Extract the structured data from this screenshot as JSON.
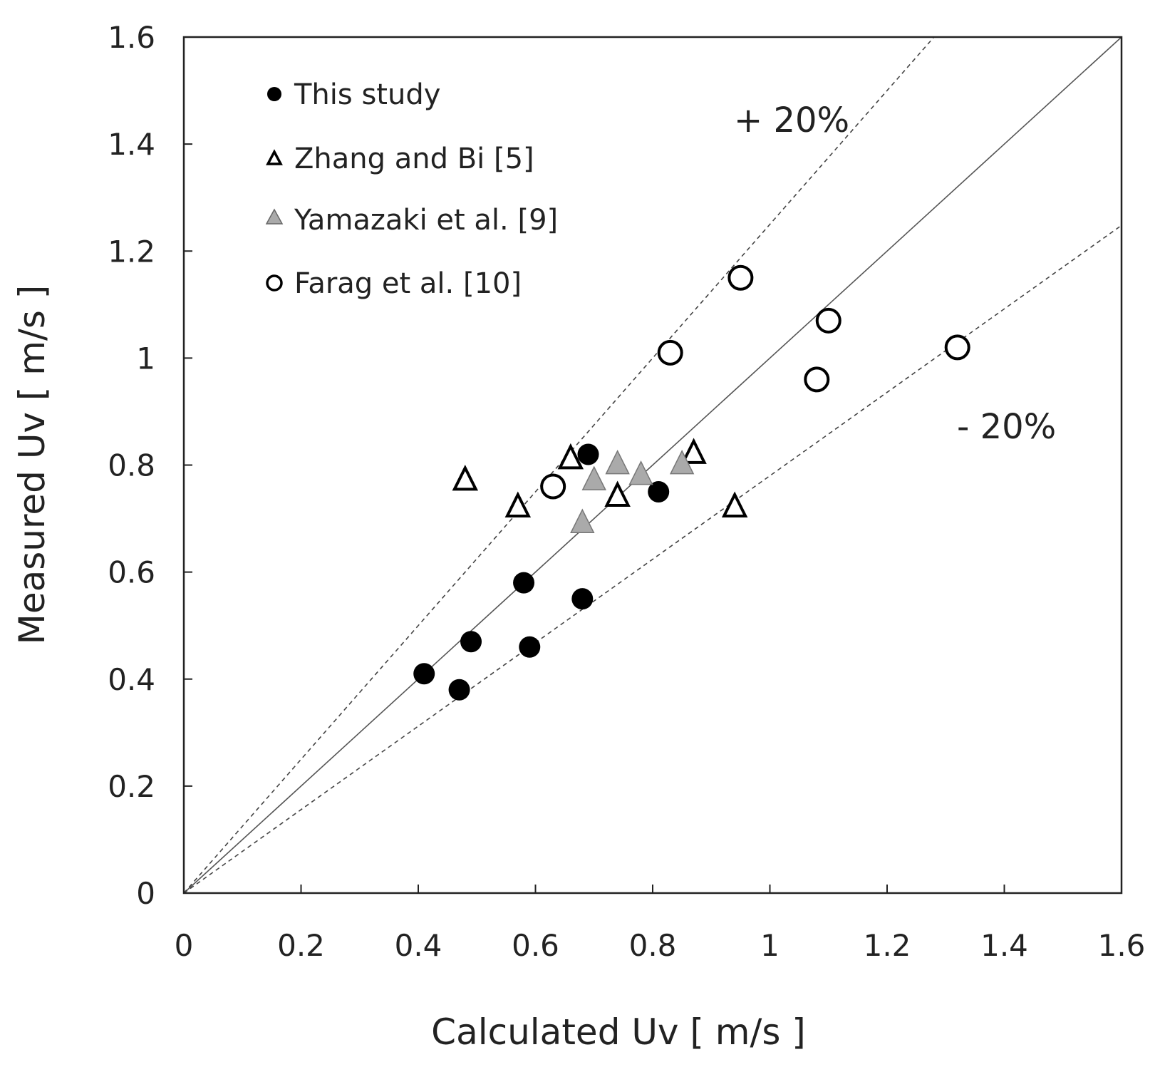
{
  "chart_data": {
    "type": "scatter",
    "title": "",
    "xlabel": "Calculated Uv  [ m/s ]",
    "ylabel": "Measured Uv  [ m/s ]",
    "xlim": [
      0,
      1.6
    ],
    "ylim": [
      0,
      1.6
    ],
    "x_ticks": [
      0,
      0.2,
      0.4,
      0.6,
      0.8,
      1,
      1.2,
      1.4,
      1.6
    ],
    "y_ticks": [
      0,
      0.2,
      0.4,
      0.6,
      0.8,
      1,
      1.2,
      1.4,
      1.6
    ],
    "x_tick_labels": [
      "0",
      "0.2",
      "0.4",
      "0.6",
      "0.8",
      "1",
      "1.2",
      "1.4",
      "1.6"
    ],
    "y_tick_labels": [
      "0",
      "0.2",
      "0.4",
      "0.6",
      "0.8",
      "1",
      "1.2",
      "1.4",
      "1.6"
    ],
    "grid": false,
    "legend_position": "top-left",
    "reference_lines": [
      {
        "name": "parity",
        "slope": 1.0,
        "style": "solid"
      },
      {
        "name": "plus-20",
        "slope": 1.25,
        "style": "dashed",
        "label": "+ 20%"
      },
      {
        "name": "minus-20",
        "slope": 0.78,
        "style": "dashed",
        "label": "- 20%"
      }
    ],
    "series": [
      {
        "name": "This study",
        "marker": "filled-circle",
        "color": "#000000",
        "points": [
          {
            "x": 0.41,
            "y": 0.41
          },
          {
            "x": 0.47,
            "y": 0.38
          },
          {
            "x": 0.49,
            "y": 0.47
          },
          {
            "x": 0.58,
            "y": 0.58
          },
          {
            "x": 0.59,
            "y": 0.46
          },
          {
            "x": 0.68,
            "y": 0.55
          },
          {
            "x": 0.69,
            "y": 0.82
          },
          {
            "x": 0.81,
            "y": 0.75
          }
        ]
      },
      {
        "name": "Zhang and Bi [5]",
        "marker": "open-triangle",
        "color": "#000000",
        "points": [
          {
            "x": 0.48,
            "y": 0.77
          },
          {
            "x": 0.57,
            "y": 0.72
          },
          {
            "x": 0.66,
            "y": 0.81
          },
          {
            "x": 0.74,
            "y": 0.74
          },
          {
            "x": 0.87,
            "y": 0.82
          },
          {
            "x": 0.94,
            "y": 0.72
          }
        ]
      },
      {
        "name": "Yamazaki et al. [9]",
        "marker": "gray-triangle",
        "color": "#aaaaaa",
        "points": [
          {
            "x": 0.68,
            "y": 0.69
          },
          {
            "x": 0.7,
            "y": 0.77
          },
          {
            "x": 0.74,
            "y": 0.8
          },
          {
            "x": 0.78,
            "y": 0.78
          },
          {
            "x": 0.85,
            "y": 0.8
          }
        ]
      },
      {
        "name": "Farag et al. [10]",
        "marker": "open-circle",
        "color": "#000000",
        "points": [
          {
            "x": 0.63,
            "y": 0.76
          },
          {
            "x": 0.83,
            "y": 1.01
          },
          {
            "x": 0.95,
            "y": 1.15
          },
          {
            "x": 1.08,
            "y": 0.96
          },
          {
            "x": 1.1,
            "y": 1.07
          },
          {
            "x": 1.32,
            "y": 1.02
          }
        ]
      }
    ],
    "annotations": [
      "+ 20%",
      "- 20%"
    ]
  }
}
